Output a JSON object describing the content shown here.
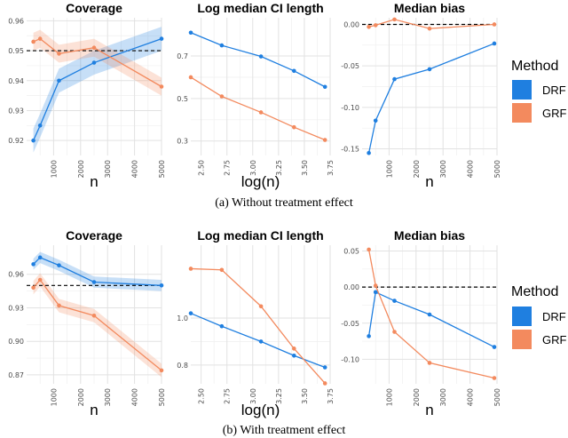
{
  "colors": {
    "DRF": "#1f7fe0",
    "GRF": "#f38a5e",
    "grid": "#e2e2e2",
    "ref": "#000000"
  },
  "legend": {
    "title": "Method",
    "items": [
      "DRF",
      "GRF"
    ]
  },
  "captions": [
    "(a) Without treatment effect",
    "(b) With treatment effect"
  ],
  "chart_data": [
    {
      "type": "line",
      "title": "Coverage",
      "xlabel": "n",
      "ylabel": "",
      "xlim": [
        0,
        5000
      ],
      "ylim": [
        0.915,
        0.961
      ],
      "xticks": [
        1000,
        2000,
        3000,
        4000,
        5000
      ],
      "yticks": [
        0.92,
        0.93,
        0.94,
        0.95,
        0.96
      ],
      "xtick_labels": [
        "1000",
        "2000",
        "3000",
        "4000",
        "5000"
      ],
      "ytick_labels": [
        "0.92",
        "0.93",
        "0.94",
        "0.95",
        "0.96"
      ],
      "refline": 0.95,
      "band": true,
      "series": [
        {
          "name": "DRF",
          "x": [
            250,
            500,
            1200,
            2500,
            5000
          ],
          "y": [
            0.92,
            0.925,
            0.94,
            0.946,
            0.954
          ],
          "band_width": 0.004
        },
        {
          "name": "GRF",
          "x": [
            250,
            500,
            1200,
            2500,
            5000
          ],
          "y": [
            0.953,
            0.954,
            0.949,
            0.951,
            0.938
          ],
          "band_width": 0.003
        }
      ]
    },
    {
      "type": "line",
      "title": "Log median CI length",
      "xlabel": "log(n)",
      "ylabel": "",
      "xlim": [
        2.4,
        3.75
      ],
      "ylim": [
        0.232,
        0.88
      ],
      "xticks": [
        2.5,
        2.75,
        3.0,
        3.25,
        3.5,
        3.75
      ],
      "yticks": [
        0.3,
        0.5,
        0.7
      ],
      "xtick_labels": [
        "2.50",
        "2.75",
        "3.00",
        "3.25",
        "3.50",
        "3.75"
      ],
      "ytick_labels": [
        "0.3",
        "0.5",
        "0.7"
      ],
      "series": [
        {
          "name": "DRF",
          "x": [
            2.4,
            2.7,
            3.08,
            3.4,
            3.7
          ],
          "y": [
            0.81,
            0.75,
            0.698,
            0.63,
            0.555
          ]
        },
        {
          "name": "GRF",
          "x": [
            2.4,
            2.7,
            3.08,
            3.4,
            3.7
          ],
          "y": [
            0.6,
            0.51,
            0.435,
            0.365,
            0.305
          ]
        }
      ]
    },
    {
      "type": "line",
      "title": "Median bias",
      "xlabel": "n",
      "ylabel": "",
      "xlim": [
        0,
        5000
      ],
      "ylim": [
        -0.158,
        0.008
      ],
      "xticks": [
        1000,
        2000,
        3000,
        4000,
        5000
      ],
      "yticks": [
        0.0,
        -0.05,
        -0.1,
        -0.15
      ],
      "xtick_labels": [
        "1000",
        "2000",
        "3000",
        "4000",
        "5000"
      ],
      "ytick_labels": [
        "0.00",
        "-0.05",
        "-0.10",
        "-0.15"
      ],
      "refline": 0.0,
      "series": [
        {
          "name": "DRF",
          "x": [
            250,
            500,
            1200,
            2500,
            4900
          ],
          "y": [
            -0.155,
            -0.116,
            -0.066,
            -0.054,
            -0.023
          ]
        },
        {
          "name": "GRF",
          "x": [
            250,
            500,
            1200,
            2500,
            4900
          ],
          "y": [
            -0.003,
            -0.001,
            0.006,
            -0.005,
            0.0
          ]
        }
      ]
    },
    {
      "type": "line",
      "title": "Coverage",
      "xlabel": "n",
      "ylabel": "",
      "xlim": [
        0,
        5000
      ],
      "ylim": [
        0.862,
        0.986
      ],
      "xticks": [
        1000,
        2000,
        3000,
        4000,
        5000
      ],
      "yticks": [
        0.87,
        0.9,
        0.93,
        0.96
      ],
      "xtick_labels": [
        "1000",
        "2000",
        "3000",
        "4000",
        "5000"
      ],
      "ytick_labels": [
        "0.87",
        "0.90",
        "0.93",
        "0.96"
      ],
      "refline": 0.95,
      "band": true,
      "series": [
        {
          "name": "DRF",
          "x": [
            250,
            500,
            1200,
            2500,
            5000
          ],
          "y": [
            0.969,
            0.975,
            0.968,
            0.953,
            0.95
          ],
          "band_width": 0.005
        },
        {
          "name": "GRF",
          "x": [
            250,
            500,
            1200,
            2500,
            5000
          ],
          "y": [
            0.948,
            0.955,
            0.932,
            0.923,
            0.874
          ],
          "band_width": 0.006
        }
      ]
    },
    {
      "type": "line",
      "title": "Log median CI length",
      "xlabel": "log(n)",
      "ylabel": "",
      "xlim": [
        2.4,
        3.75
      ],
      "ylim": [
        0.72,
        1.31
      ],
      "xticks": [
        2.5,
        2.75,
        3.0,
        3.25,
        3.5,
        3.75
      ],
      "yticks": [
        0.8,
        1.0
      ],
      "xtick_labels": [
        "2.50",
        "2.75",
        "3.00",
        "3.25",
        "3.50",
        "3.75"
      ],
      "ytick_labels": [
        "0.8",
        "1.0"
      ],
      "series": [
        {
          "name": "DRF",
          "x": [
            2.4,
            2.7,
            3.08,
            3.4,
            3.7
          ],
          "y": [
            1.02,
            0.965,
            0.9,
            0.84,
            0.79
          ]
        },
        {
          "name": "GRF",
          "x": [
            2.4,
            2.7,
            3.08,
            3.4,
            3.7
          ],
          "y": [
            1.21,
            1.205,
            1.05,
            0.87,
            0.722
          ]
        }
      ]
    },
    {
      "type": "line",
      "title": "Median bias",
      "xlabel": "n",
      "ylabel": "",
      "xlim": [
        0,
        5000
      ],
      "ylim": [
        -0.134,
        0.058
      ],
      "xticks": [
        1000,
        2000,
        3000,
        4000,
        5000
      ],
      "yticks": [
        0.05,
        0.0,
        -0.05,
        -0.1
      ],
      "xtick_labels": [
        "1000",
        "2000",
        "3000",
        "4000",
        "5000"
      ],
      "ytick_labels": [
        "0.05",
        "0.00",
        "-0.05",
        "-0.10"
      ],
      "refline": 0.0,
      "series": [
        {
          "name": "DRF",
          "x": [
            250,
            500,
            1200,
            2500,
            4900
          ],
          "y": [
            -0.068,
            -0.007,
            -0.019,
            -0.038,
            -0.083
          ]
        },
        {
          "name": "GRF",
          "x": [
            250,
            500,
            1200,
            2500,
            4900
          ],
          "y": [
            0.052,
            0.002,
            -0.062,
            -0.105,
            -0.126
          ]
        }
      ]
    }
  ]
}
